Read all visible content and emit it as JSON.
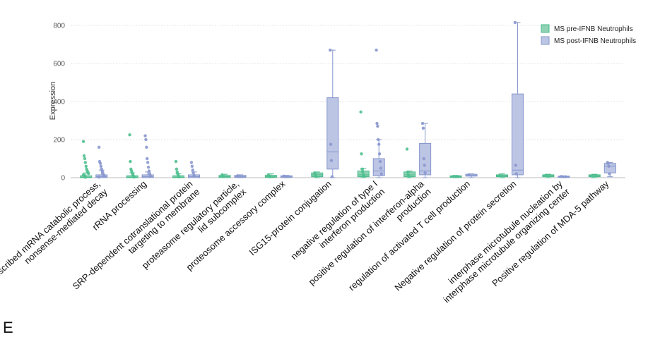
{
  "panel_letter": "E",
  "colors": {
    "pre": {
      "fill": "#8fd3b4",
      "stroke": "#46b98a",
      "point": "#4fc08f"
    },
    "post": {
      "fill": "#bcc5e4",
      "stroke": "#8595cc",
      "point": "#8a97cf"
    }
  },
  "chart_data": {
    "type": "box",
    "ylabel": "Expression",
    "ylim": [
      0,
      820
    ],
    "yticks": [
      0,
      200,
      400,
      600,
      800
    ],
    "grid": true,
    "legend_position": "top-right",
    "categories": [
      [
        "nuclear-transcribed mRNA catabolic process,",
        "nonsense-mediated decay"
      ],
      [
        "rRNA processing"
      ],
      [
        "SRP-dependent cotranslational protein",
        "targeting to membrane"
      ],
      [
        "proteasome regulatory particle,",
        "lid subcomplex"
      ],
      [
        "proteosome accessory complex"
      ],
      [
        "ISG15-protein conjugation"
      ],
      [
        "negative regulation of type I",
        "interferon production"
      ],
      [
        "positive regulation of interferon-alpha",
        "production"
      ],
      [
        "regulation of activated T cell production"
      ],
      [
        "Negative regulation of protein secretion"
      ],
      [
        "interphase microtubule nucleation by",
        "interphase microtubule organizing center"
      ],
      [
        "Positive regulation of MDA-5 pathway"
      ]
    ],
    "series": [
      {
        "name": "MS pre-IFNB Neutrophils",
        "color_key": "pre",
        "boxes": [
          {
            "q1": 0,
            "median": 3,
            "q3": 10,
            "whisker_low": 0,
            "whisker_high": 25,
            "points": [
              190,
              115,
              100,
              80,
              60,
              45,
              35,
              28,
              22,
              15,
              10,
              5,
              2
            ]
          },
          {
            "q1": 0,
            "median": 3,
            "q3": 10,
            "whisker_low": 0,
            "whisker_high": 25,
            "points": [
              225,
              85,
              45,
              35,
              25,
              15,
              8,
              3
            ]
          },
          {
            "q1": 0,
            "median": 3,
            "q3": 10,
            "whisker_low": 0,
            "whisker_high": 20,
            "points": [
              85,
              45,
              30,
              20,
              10,
              4
            ]
          },
          {
            "q1": 0,
            "median": 5,
            "q3": 12,
            "whisker_low": 0,
            "whisker_high": 18,
            "points": [
              15,
              8
            ]
          },
          {
            "q1": 2,
            "median": 7,
            "q3": 12,
            "whisker_low": 0,
            "whisker_high": 20,
            "points": [
              15,
              8,
              5
            ]
          },
          {
            "q1": 5,
            "median": 15,
            "q3": 25,
            "whisker_low": 0,
            "whisker_high": 30,
            "points": [
              25,
              15,
              8
            ]
          },
          {
            "q1": 5,
            "median": 15,
            "q3": 35,
            "whisker_low": 0,
            "whisker_high": 50,
            "points": [
              345,
              125,
              45,
              30,
              15,
              8
            ]
          },
          {
            "q1": 5,
            "median": 15,
            "q3": 30,
            "whisker_low": 0,
            "whisker_high": 35,
            "points": [
              150,
              30,
              15,
              8
            ]
          },
          {
            "q1": 2,
            "median": 5,
            "q3": 10,
            "whisker_low": 0,
            "whisker_high": 12,
            "points": [
              6
            ]
          },
          {
            "q1": 5,
            "median": 10,
            "q3": 15,
            "whisker_low": 0,
            "whisker_high": 20,
            "points": [
              12
            ]
          },
          {
            "q1": 5,
            "median": 10,
            "q3": 15,
            "whisker_low": 0,
            "whisker_high": 18,
            "points": [
              12
            ]
          },
          {
            "q1": 5,
            "median": 10,
            "q3": 15,
            "whisker_low": 0,
            "whisker_high": 18,
            "points": [
              10
            ]
          }
        ]
      },
      {
        "name": "MS post-IFNB Neutrophils",
        "color_key": "post",
        "boxes": [
          {
            "q1": 0,
            "median": 5,
            "q3": 15,
            "whisker_low": 0,
            "whisker_high": 40,
            "points": [
              160,
              85,
              75,
              60,
              45,
              35,
              25,
              15,
              8,
              3
            ]
          },
          {
            "q1": 0,
            "median": 5,
            "q3": 15,
            "whisker_low": 0,
            "whisker_high": 30,
            "points": [
              220,
              200,
              160,
              100,
              80,
              55,
              35,
              20,
              10
            ]
          },
          {
            "q1": 0,
            "median": 5,
            "q3": 15,
            "whisker_low": 0,
            "whisker_high": 30,
            "points": [
              80,
              60,
              40,
              25,
              12
            ]
          },
          {
            "q1": 2,
            "median": 6,
            "q3": 12,
            "whisker_low": 0,
            "whisker_high": 15,
            "points": [
              10
            ]
          },
          {
            "q1": 2,
            "median": 6,
            "q3": 10,
            "whisker_low": 0,
            "whisker_high": 12,
            "points": [
              8
            ]
          },
          {
            "q1": 45,
            "median": 135,
            "q3": 420,
            "whisker_low": 0,
            "whisker_high": 670,
            "points": [
              670,
              175,
              90,
              5
            ]
          },
          {
            "q1": 10,
            "median": 35,
            "q3": 100,
            "whisker_low": 0,
            "whisker_high": 200,
            "points": [
              670,
              285,
              270,
              200,
              175,
              125,
              85,
              50,
              20
            ]
          },
          {
            "q1": 15,
            "median": 35,
            "q3": 180,
            "whisker_low": 0,
            "whisker_high": 285,
            "points": [
              285,
              260,
              100,
              65,
              25
            ]
          },
          {
            "q1": 8,
            "median": 12,
            "q3": 18,
            "whisker_low": 0,
            "whisker_high": 20,
            "points": [
              15
            ]
          },
          {
            "q1": 15,
            "median": 40,
            "q3": 440,
            "whisker_low": 0,
            "whisker_high": 815,
            "points": [
              815,
              65,
              20
            ]
          },
          {
            "q1": 2,
            "median": 5,
            "q3": 8,
            "whisker_low": 0,
            "whisker_high": 10,
            "points": [
              6
            ]
          },
          {
            "q1": 25,
            "median": 60,
            "q3": 75,
            "whisker_low": 5,
            "whisker_high": 80,
            "points": [
              80,
              75,
              60,
              20
            ]
          }
        ]
      }
    ]
  }
}
